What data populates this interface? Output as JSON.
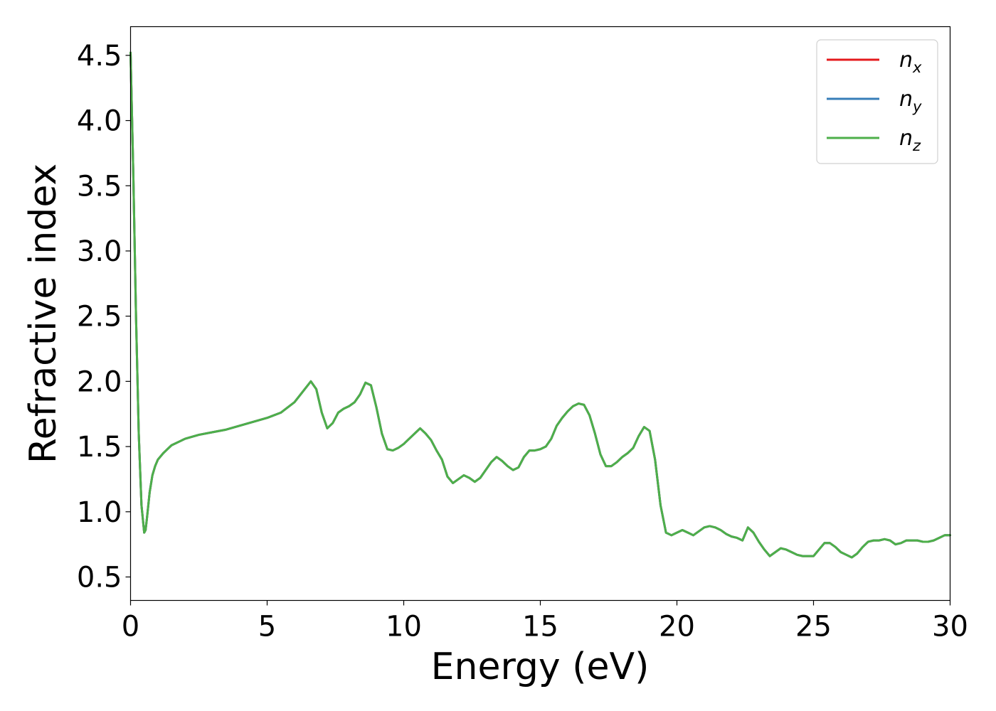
{
  "chart_data": {
    "type": "line",
    "title": "",
    "xlabel": "Energy (eV)",
    "ylabel": "Refractive index",
    "xlim": [
      0,
      30
    ],
    "ylim": [
      0.32,
      4.72
    ],
    "grid": false,
    "legend_position": "top-right",
    "xticks": [
      0,
      5,
      10,
      15,
      20,
      25,
      30
    ],
    "xtick_labels": [
      "0",
      "5",
      "10",
      "15",
      "20",
      "25",
      "30"
    ],
    "yticks": [
      0.5,
      1.0,
      1.5,
      2.0,
      2.5,
      3.0,
      3.5,
      4.0,
      4.5
    ],
    "ytick_labels": [
      "0.5",
      "1.0",
      "1.5",
      "2.0",
      "2.5",
      "3.0",
      "3.5",
      "4.0",
      "4.5"
    ],
    "colors": {
      "n_x": "#e41a1c",
      "n_y": "#377eb8",
      "n_z": "#4daf4a"
    },
    "x": [
      0,
      0.1,
      0.2,
      0.3,
      0.4,
      0.5,
      0.55,
      0.6,
      0.7,
      0.8,
      0.9,
      1.0,
      1.2,
      1.5,
      2.0,
      2.5,
      3.0,
      3.5,
      4.0,
      4.5,
      5.0,
      5.5,
      6.0,
      6.3,
      6.6,
      6.8,
      7.0,
      7.2,
      7.4,
      7.6,
      7.8,
      8.0,
      8.2,
      8.4,
      8.6,
      8.8,
      9.0,
      9.2,
      9.4,
      9.6,
      9.8,
      10.0,
      10.2,
      10.4,
      10.6,
      10.8,
      11.0,
      11.2,
      11.4,
      11.6,
      11.8,
      12.0,
      12.2,
      12.4,
      12.6,
      12.8,
      13.0,
      13.2,
      13.4,
      13.6,
      13.8,
      14.0,
      14.2,
      14.4,
      14.6,
      14.8,
      15.0,
      15.2,
      15.4,
      15.6,
      15.8,
      16.0,
      16.2,
      16.4,
      16.6,
      16.8,
      17.0,
      17.2,
      17.4,
      17.6,
      17.8,
      18.0,
      18.2,
      18.4,
      18.6,
      18.8,
      19.0,
      19.2,
      19.4,
      19.6,
      19.8,
      20.0,
      20.2,
      20.4,
      20.6,
      20.8,
      21.0,
      21.2,
      21.4,
      21.6,
      21.8,
      22.0,
      22.2,
      22.4,
      22.6,
      22.8,
      23.0,
      23.2,
      23.4,
      23.6,
      23.8,
      24.0,
      24.2,
      24.4,
      24.6,
      24.8,
      25.0,
      25.2,
      25.4,
      25.6,
      25.8,
      26.0,
      26.2,
      26.4,
      26.6,
      26.8,
      27.0,
      27.2,
      27.4,
      27.6,
      27.8,
      28.0,
      28.2,
      28.4,
      28.6,
      28.8,
      29.0,
      29.2,
      29.4,
      29.6,
      29.8,
      30.0
    ],
    "series": [
      {
        "name": "n_x",
        "values": [
          4.52,
          3.6,
          2.5,
          1.6,
          1.05,
          0.84,
          0.86,
          0.95,
          1.15,
          1.28,
          1.35,
          1.4,
          1.45,
          1.51,
          1.56,
          1.59,
          1.61,
          1.63,
          1.66,
          1.69,
          1.72,
          1.76,
          1.84,
          1.92,
          2.0,
          1.94,
          1.76,
          1.64,
          1.68,
          1.76,
          1.79,
          1.81,
          1.84,
          1.9,
          1.99,
          1.97,
          1.8,
          1.6,
          1.48,
          1.47,
          1.49,
          1.52,
          1.56,
          1.6,
          1.64,
          1.6,
          1.55,
          1.47,
          1.4,
          1.27,
          1.22,
          1.25,
          1.28,
          1.26,
          1.23,
          1.26,
          1.32,
          1.38,
          1.42,
          1.39,
          1.35,
          1.32,
          1.34,
          1.42,
          1.47,
          1.47,
          1.48,
          1.5,
          1.56,
          1.66,
          1.72,
          1.77,
          1.81,
          1.83,
          1.82,
          1.74,
          1.6,
          1.44,
          1.35,
          1.35,
          1.38,
          1.42,
          1.45,
          1.49,
          1.58,
          1.65,
          1.62,
          1.4,
          1.05,
          0.84,
          0.82,
          0.84,
          0.86,
          0.84,
          0.82,
          0.85,
          0.88,
          0.89,
          0.88,
          0.86,
          0.83,
          0.81,
          0.8,
          0.78,
          0.88,
          0.84,
          0.77,
          0.71,
          0.66,
          0.69,
          0.72,
          0.71,
          0.69,
          0.67,
          0.66,
          0.66,
          0.66,
          0.71,
          0.76,
          0.76,
          0.73,
          0.69,
          0.67,
          0.65,
          0.68,
          0.73,
          0.77,
          0.78,
          0.78,
          0.79,
          0.78,
          0.75,
          0.76,
          0.78,
          0.78,
          0.78,
          0.77,
          0.77,
          0.78,
          0.8,
          0.82,
          0.82
        ]
      },
      {
        "name": "n_y",
        "values": [
          4.52,
          3.6,
          2.5,
          1.6,
          1.05,
          0.84,
          0.86,
          0.95,
          1.15,
          1.28,
          1.35,
          1.4,
          1.45,
          1.51,
          1.56,
          1.59,
          1.61,
          1.63,
          1.66,
          1.69,
          1.72,
          1.76,
          1.84,
          1.92,
          2.0,
          1.94,
          1.76,
          1.64,
          1.68,
          1.76,
          1.79,
          1.81,
          1.84,
          1.9,
          1.99,
          1.97,
          1.8,
          1.6,
          1.48,
          1.47,
          1.49,
          1.52,
          1.56,
          1.6,
          1.64,
          1.6,
          1.55,
          1.47,
          1.4,
          1.27,
          1.22,
          1.25,
          1.28,
          1.26,
          1.23,
          1.26,
          1.32,
          1.38,
          1.42,
          1.39,
          1.35,
          1.32,
          1.34,
          1.42,
          1.47,
          1.47,
          1.48,
          1.5,
          1.56,
          1.66,
          1.72,
          1.77,
          1.81,
          1.83,
          1.82,
          1.74,
          1.6,
          1.44,
          1.35,
          1.35,
          1.38,
          1.42,
          1.45,
          1.49,
          1.58,
          1.65,
          1.62,
          1.4,
          1.05,
          0.84,
          0.82,
          0.84,
          0.86,
          0.84,
          0.82,
          0.85,
          0.88,
          0.89,
          0.88,
          0.86,
          0.83,
          0.81,
          0.8,
          0.78,
          0.88,
          0.84,
          0.77,
          0.71,
          0.66,
          0.69,
          0.72,
          0.71,
          0.69,
          0.67,
          0.66,
          0.66,
          0.66,
          0.71,
          0.76,
          0.76,
          0.73,
          0.69,
          0.67,
          0.65,
          0.68,
          0.73,
          0.77,
          0.78,
          0.78,
          0.79,
          0.78,
          0.75,
          0.76,
          0.78,
          0.78,
          0.78,
          0.77,
          0.77,
          0.78,
          0.8,
          0.82,
          0.82
        ]
      },
      {
        "name": "n_z",
        "values": [
          4.52,
          3.6,
          2.5,
          1.6,
          1.05,
          0.84,
          0.86,
          0.95,
          1.15,
          1.28,
          1.35,
          1.4,
          1.45,
          1.51,
          1.56,
          1.59,
          1.61,
          1.63,
          1.66,
          1.69,
          1.72,
          1.76,
          1.84,
          1.92,
          2.0,
          1.94,
          1.76,
          1.64,
          1.68,
          1.76,
          1.79,
          1.81,
          1.84,
          1.9,
          1.99,
          1.97,
          1.8,
          1.6,
          1.48,
          1.47,
          1.49,
          1.52,
          1.56,
          1.6,
          1.64,
          1.6,
          1.55,
          1.47,
          1.4,
          1.27,
          1.22,
          1.25,
          1.28,
          1.26,
          1.23,
          1.26,
          1.32,
          1.38,
          1.42,
          1.39,
          1.35,
          1.32,
          1.34,
          1.42,
          1.47,
          1.47,
          1.48,
          1.5,
          1.56,
          1.66,
          1.72,
          1.77,
          1.81,
          1.83,
          1.82,
          1.74,
          1.6,
          1.44,
          1.35,
          1.35,
          1.38,
          1.42,
          1.45,
          1.49,
          1.58,
          1.65,
          1.62,
          1.4,
          1.05,
          0.84,
          0.82,
          0.84,
          0.86,
          0.84,
          0.82,
          0.85,
          0.88,
          0.89,
          0.88,
          0.86,
          0.83,
          0.81,
          0.8,
          0.78,
          0.88,
          0.84,
          0.77,
          0.71,
          0.66,
          0.69,
          0.72,
          0.71,
          0.69,
          0.67,
          0.66,
          0.66,
          0.66,
          0.71,
          0.76,
          0.76,
          0.73,
          0.69,
          0.67,
          0.65,
          0.68,
          0.73,
          0.77,
          0.78,
          0.78,
          0.79,
          0.78,
          0.75,
          0.76,
          0.78,
          0.78,
          0.78,
          0.77,
          0.77,
          0.78,
          0.8,
          0.82,
          0.82
        ]
      }
    ],
    "legend": [
      {
        "key": "n_x",
        "base": "n",
        "sub": "x"
      },
      {
        "key": "n_y",
        "base": "n",
        "sub": "y"
      },
      {
        "key": "n_z",
        "base": "n",
        "sub": "z"
      }
    ]
  }
}
